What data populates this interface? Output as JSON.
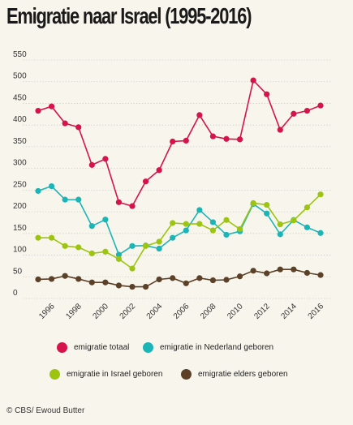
{
  "title": "Emigratie naar Israel (1995-2016)",
  "credit": "© CBS/ Ewoud Butter",
  "chart_data": {
    "type": "line",
    "x": [
      1995,
      1996,
      1997,
      1998,
      1999,
      2000,
      2001,
      2002,
      2003,
      2004,
      2005,
      2006,
      2007,
      2008,
      2009,
      2010,
      2011,
      2012,
      2013,
      2014,
      2015,
      2016
    ],
    "x_tick_labels": [
      "1996",
      "1998",
      "2000",
      "2002",
      "2004",
      "2006",
      "2008",
      "2010",
      "2012",
      "2014",
      "2016"
    ],
    "y_ticks": [
      0,
      50,
      100,
      150,
      200,
      250,
      300,
      350,
      400,
      450,
      500,
      550
    ],
    "ylim": [
      0,
      550
    ],
    "grid": "horizontal",
    "legend": "bottom",
    "series": [
      {
        "name": "emigratie totaal",
        "color": "#d4144a",
        "values": [
          433,
          443,
          404,
          395,
          308,
          322,
          222,
          213,
          270,
          296,
          362,
          364,
          423,
          374,
          368,
          367,
          503,
          471,
          389,
          426,
          433,
          445
        ]
      },
      {
        "name": "emigratie in Nederland geboren",
        "color": "#1bb5b8",
        "values": [
          248,
          259,
          228,
          228,
          167,
          182,
          101,
          121,
          122,
          115,
          140,
          157,
          204,
          176,
          147,
          155,
          218,
          196,
          148,
          181,
          164,
          151
        ]
      },
      {
        "name": "emigratie in Israel geboren",
        "color": "#9cc411",
        "values": [
          140,
          140,
          121,
          118,
          104,
          108,
          91,
          69,
          121,
          131,
          174,
          172,
          172,
          157,
          181,
          160,
          220,
          216,
          171,
          180,
          210,
          240
        ]
      },
      {
        "name": "emigratie elders geboren",
        "color": "#5c4027",
        "values": [
          44,
          45,
          52,
          45,
          37,
          37,
          30,
          27,
          27,
          44,
          47,
          35,
          47,
          42,
          43,
          51,
          64,
          58,
          67,
          67,
          59,
          54
        ]
      }
    ]
  }
}
